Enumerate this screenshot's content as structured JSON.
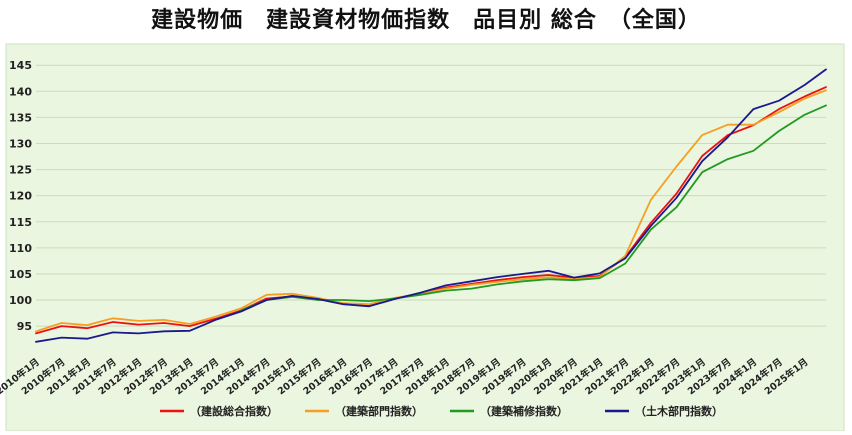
{
  "title": "建設物価　建設資材物価指数　品目別 総合　（全国）",
  "chart_data": {
    "type": "line",
    "title": "建設物価　建設資材物価指数　品目別 総合　（全国）",
    "xlabel": "",
    "ylabel": "",
    "ylim": [
      91,
      146
    ],
    "yticks": [
      95,
      100,
      105,
      110,
      115,
      120,
      125,
      130,
      135,
      140,
      145
    ],
    "xlim": [
      0,
      185
    ],
    "x_tick_labels": [
      "2010年1月",
      "2010年7月",
      "2011年1月",
      "2011年7月",
      "2012年1月",
      "2012年7月",
      "2013年1月",
      "2013年7月",
      "2014年1月",
      "2014年7月",
      "2015年1月",
      "2015年7月",
      "2016年1月",
      "2016年7月",
      "2017年1月",
      "2017年7月",
      "2018年1月",
      "2018年7月",
      "2019年1月",
      "2019年7月",
      "2020年1月",
      "2020年7月",
      "2021年1月",
      "2021年7月",
      "2022年1月",
      "2022年7月",
      "2023年1月",
      "2023年7月",
      "2024年1月",
      "2024年7月",
      "2025年1月"
    ],
    "grid": true,
    "legend_position": "bottom",
    "background": "#eaf6e0",
    "series": [
      {
        "name": "（建設総合指数）",
        "color": "#ee1111",
        "points": [
          [
            0,
            93.6
          ],
          [
            6,
            95.0
          ],
          [
            12,
            94.6
          ],
          [
            18,
            95.8
          ],
          [
            24,
            95.3
          ],
          [
            30,
            95.6
          ],
          [
            36,
            95.0
          ],
          [
            42,
            96.4
          ],
          [
            48,
            98.0
          ],
          [
            54,
            100.3
          ],
          [
            60,
            100.7
          ],
          [
            66,
            100.2
          ],
          [
            72,
            99.2
          ],
          [
            78,
            99.0
          ],
          [
            84,
            100.3
          ],
          [
            90,
            101.2
          ],
          [
            96,
            102.4
          ],
          [
            102,
            103.1
          ],
          [
            108,
            103.8
          ],
          [
            114,
            104.4
          ],
          [
            120,
            104.8
          ],
          [
            126,
            104.3
          ],
          [
            132,
            104.6
          ],
          [
            138,
            108.2
          ],
          [
            144,
            114.8
          ],
          [
            150,
            120.4
          ],
          [
            156,
            127.6
          ],
          [
            162,
            131.6
          ],
          [
            168,
            133.5
          ],
          [
            174,
            136.6
          ],
          [
            180,
            139.0
          ],
          [
            185,
            140.8
          ]
        ]
      },
      {
        "name": "（建築部門指数）",
        "color": "#f5a020",
        "points": [
          [
            0,
            94.0
          ],
          [
            6,
            95.6
          ],
          [
            12,
            95.2
          ],
          [
            18,
            96.5
          ],
          [
            24,
            96.0
          ],
          [
            30,
            96.2
          ],
          [
            36,
            95.4
          ],
          [
            42,
            96.8
          ],
          [
            48,
            98.4
          ],
          [
            54,
            101.0
          ],
          [
            60,
            101.2
          ],
          [
            66,
            100.4
          ],
          [
            72,
            99.4
          ],
          [
            78,
            99.2
          ],
          [
            84,
            100.4
          ],
          [
            90,
            101.2
          ],
          [
            96,
            102.2
          ],
          [
            102,
            102.9
          ],
          [
            108,
            103.5
          ],
          [
            114,
            104.0
          ],
          [
            120,
            104.4
          ],
          [
            126,
            104.0
          ],
          [
            132,
            104.4
          ],
          [
            138,
            108.5
          ],
          [
            144,
            119.2
          ],
          [
            150,
            125.6
          ],
          [
            156,
            131.6
          ],
          [
            162,
            133.6
          ],
          [
            168,
            133.6
          ],
          [
            174,
            136.0
          ],
          [
            180,
            138.6
          ],
          [
            185,
            140.2
          ]
        ]
      },
      {
        "name": "（建築補修指数）",
        "color": "#229922",
        "points": [
          [
            48,
            98.0
          ],
          [
            54,
            100.0
          ],
          [
            60,
            100.6
          ],
          [
            66,
            100.0
          ],
          [
            72,
            100.0
          ],
          [
            78,
            99.8
          ],
          [
            84,
            100.3
          ],
          [
            90,
            101.0
          ],
          [
            96,
            101.8
          ],
          [
            102,
            102.2
          ],
          [
            108,
            103.0
          ],
          [
            114,
            103.6
          ],
          [
            120,
            104.0
          ],
          [
            126,
            103.8
          ],
          [
            132,
            104.2
          ],
          [
            138,
            107.0
          ],
          [
            144,
            113.5
          ],
          [
            150,
            117.8
          ],
          [
            156,
            124.5
          ],
          [
            162,
            127.0
          ],
          [
            168,
            128.6
          ],
          [
            174,
            132.4
          ],
          [
            180,
            135.5
          ],
          [
            185,
            137.3
          ]
        ]
      },
      {
        "name": "（土木部門指数）",
        "color": "#1a1a8c",
        "points": [
          [
            0,
            92.0
          ],
          [
            6,
            92.8
          ],
          [
            12,
            92.6
          ],
          [
            18,
            93.8
          ],
          [
            24,
            93.6
          ],
          [
            30,
            94.0
          ],
          [
            36,
            94.1
          ],
          [
            42,
            96.2
          ],
          [
            48,
            97.8
          ],
          [
            54,
            100.0
          ],
          [
            60,
            100.8
          ],
          [
            66,
            100.2
          ],
          [
            72,
            99.2
          ],
          [
            78,
            98.8
          ],
          [
            84,
            100.2
          ],
          [
            90,
            101.4
          ],
          [
            96,
            102.8
          ],
          [
            102,
            103.6
          ],
          [
            108,
            104.4
          ],
          [
            114,
            105.0
          ],
          [
            120,
            105.6
          ],
          [
            126,
            104.3
          ],
          [
            132,
            105.1
          ],
          [
            138,
            108.0
          ],
          [
            144,
            114.2
          ],
          [
            150,
            119.6
          ],
          [
            156,
            126.6
          ],
          [
            162,
            131.2
          ],
          [
            168,
            136.6
          ],
          [
            174,
            138.2
          ],
          [
            180,
            141.2
          ],
          [
            185,
            144.2
          ]
        ]
      }
    ]
  }
}
